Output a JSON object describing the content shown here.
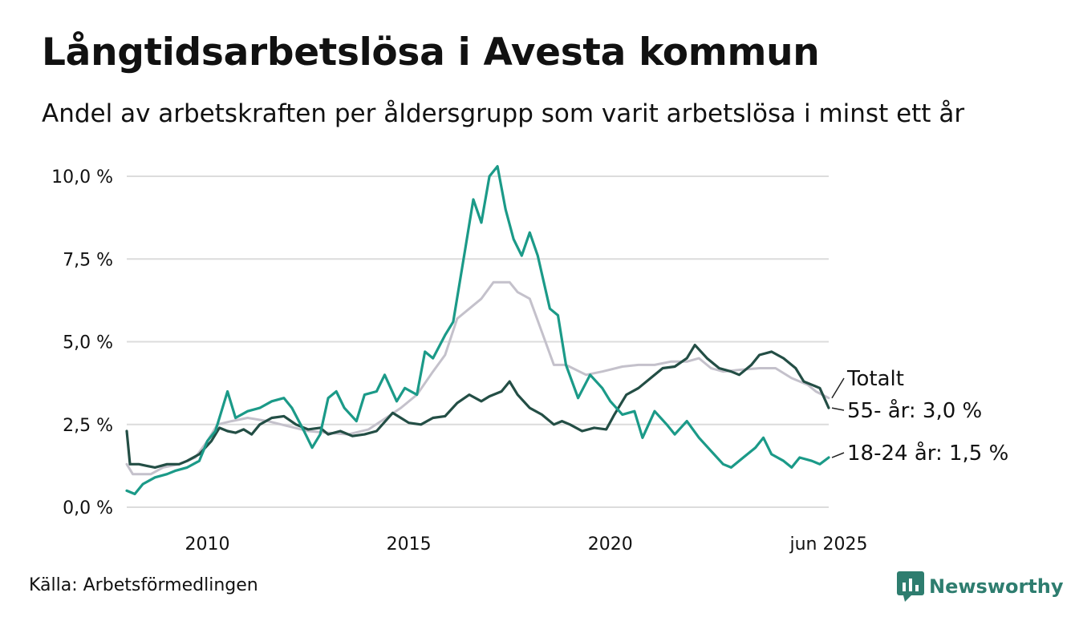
{
  "title": "Långtidsarbetslösa i Avesta kommun",
  "subtitle": "Andel av arbetskraften per åldersgrupp som varit arbetslösa i minst ett år",
  "source": "Källa: Arbetsförmedlingen",
  "brand": "Newsworthy",
  "colors": {
    "Totalt": "#c4c1cb",
    "55- år": "#234e45",
    "18-24 år": "#1b9a88",
    "grid": "#dcdcdc",
    "brand": "#2e7d6f"
  },
  "chart_data": {
    "type": "line",
    "title": "Långtidsarbetslösa i Avesta kommun",
    "xlabel": "",
    "ylabel": "",
    "xlim": [
      2008.0,
      2025.42
    ],
    "ylim": [
      0,
      10
    ],
    "yticks": [
      0,
      2.5,
      5,
      7.5,
      10
    ],
    "ytick_labels": [
      "0,0 %",
      "2,5 %",
      "5,0 %",
      "7,5 %",
      "10,0 %"
    ],
    "xticks": [
      2010,
      2015,
      2020,
      2025.42
    ],
    "xtick_labels": [
      "2010",
      "2015",
      "2020",
      "jun 2025"
    ],
    "grid": true,
    "legend": "end-of-line labels",
    "series": [
      {
        "name": "Totalt",
        "end_label": "Totalt",
        "points": [
          [
            2008.0,
            1.3
          ],
          [
            2008.15,
            1.0
          ],
          [
            2008.6,
            1.0
          ],
          [
            2008.9,
            1.2
          ],
          [
            2009.3,
            1.3
          ],
          [
            2009.7,
            1.5
          ],
          [
            2010.0,
            2.0
          ],
          [
            2010.25,
            2.5
          ],
          [
            2010.6,
            2.6
          ],
          [
            2011.0,
            2.7
          ],
          [
            2011.5,
            2.6
          ],
          [
            2012.0,
            2.45
          ],
          [
            2012.5,
            2.3
          ],
          [
            2013.0,
            2.25
          ],
          [
            2013.5,
            2.2
          ],
          [
            2014.0,
            2.35
          ],
          [
            2014.5,
            2.75
          ],
          [
            2014.8,
            3.0
          ],
          [
            2015.2,
            3.4
          ],
          [
            2015.6,
            4.1
          ],
          [
            2015.9,
            4.6
          ],
          [
            2016.2,
            5.7
          ],
          [
            2016.5,
            6.0
          ],
          [
            2016.8,
            6.3
          ],
          [
            2017.1,
            6.8
          ],
          [
            2017.5,
            6.8
          ],
          [
            2017.7,
            6.5
          ],
          [
            2018.0,
            6.3
          ],
          [
            2018.3,
            5.3
          ],
          [
            2018.6,
            4.3
          ],
          [
            2018.9,
            4.3
          ],
          [
            2019.4,
            4.0
          ],
          [
            2019.8,
            4.1
          ],
          [
            2020.3,
            4.25
          ],
          [
            2020.7,
            4.3
          ],
          [
            2021.1,
            4.3
          ],
          [
            2021.5,
            4.4
          ],
          [
            2021.9,
            4.4
          ],
          [
            2022.2,
            4.5
          ],
          [
            2022.5,
            4.2
          ],
          [
            2022.8,
            4.1
          ],
          [
            2023.2,
            4.15
          ],
          [
            2023.7,
            4.2
          ],
          [
            2024.1,
            4.2
          ],
          [
            2024.5,
            3.9
          ],
          [
            2024.9,
            3.7
          ],
          [
            2025.1,
            3.5
          ],
          [
            2025.42,
            3.3
          ]
        ]
      },
      {
        "name": "55- år",
        "end_label": "55- år: 3,0 %",
        "last_value": 3.0,
        "points": [
          [
            2008.0,
            2.3
          ],
          [
            2008.08,
            1.3
          ],
          [
            2008.3,
            1.3
          ],
          [
            2008.5,
            1.25
          ],
          [
            2008.7,
            1.2
          ],
          [
            2009.0,
            1.3
          ],
          [
            2009.3,
            1.3
          ],
          [
            2009.5,
            1.4
          ],
          [
            2009.8,
            1.6
          ],
          [
            2010.1,
            2.0
          ],
          [
            2010.3,
            2.4
          ],
          [
            2010.5,
            2.3
          ],
          [
            2010.7,
            2.25
          ],
          [
            2010.9,
            2.35
          ],
          [
            2011.1,
            2.2
          ],
          [
            2011.3,
            2.5
          ],
          [
            2011.6,
            2.7
          ],
          [
            2011.9,
            2.75
          ],
          [
            2012.2,
            2.5
          ],
          [
            2012.5,
            2.35
          ],
          [
            2012.8,
            2.4
          ],
          [
            2013.0,
            2.2
          ],
          [
            2013.3,
            2.3
          ],
          [
            2013.6,
            2.15
          ],
          [
            2013.9,
            2.2
          ],
          [
            2014.2,
            2.3
          ],
          [
            2014.6,
            2.85
          ],
          [
            2014.8,
            2.7
          ],
          [
            2015.0,
            2.55
          ],
          [
            2015.3,
            2.5
          ],
          [
            2015.6,
            2.7
          ],
          [
            2015.9,
            2.75
          ],
          [
            2016.2,
            3.15
          ],
          [
            2016.5,
            3.4
          ],
          [
            2016.8,
            3.2
          ],
          [
            2017.0,
            3.35
          ],
          [
            2017.3,
            3.5
          ],
          [
            2017.5,
            3.8
          ],
          [
            2017.7,
            3.4
          ],
          [
            2018.0,
            3.0
          ],
          [
            2018.3,
            2.8
          ],
          [
            2018.6,
            2.5
          ],
          [
            2018.8,
            2.6
          ],
          [
            2019.0,
            2.5
          ],
          [
            2019.3,
            2.3
          ],
          [
            2019.6,
            2.4
          ],
          [
            2019.9,
            2.35
          ],
          [
            2020.1,
            2.8
          ],
          [
            2020.4,
            3.4
          ],
          [
            2020.7,
            3.6
          ],
          [
            2021.0,
            3.9
          ],
          [
            2021.3,
            4.2
          ],
          [
            2021.6,
            4.25
          ],
          [
            2021.9,
            4.5
          ],
          [
            2022.1,
            4.9
          ],
          [
            2022.4,
            4.5
          ],
          [
            2022.7,
            4.2
          ],
          [
            2023.0,
            4.1
          ],
          [
            2023.2,
            4.0
          ],
          [
            2023.5,
            4.3
          ],
          [
            2023.7,
            4.6
          ],
          [
            2024.0,
            4.7
          ],
          [
            2024.3,
            4.5
          ],
          [
            2024.6,
            4.2
          ],
          [
            2024.8,
            3.8
          ],
          [
            2025.0,
            3.7
          ],
          [
            2025.2,
            3.6
          ],
          [
            2025.42,
            3.0
          ]
        ]
      },
      {
        "name": "18-24 år",
        "end_label": "18-24 år: 1,5 %",
        "last_value": 1.5,
        "points": [
          [
            2008.0,
            0.5
          ],
          [
            2008.2,
            0.4
          ],
          [
            2008.4,
            0.7
          ],
          [
            2008.7,
            0.9
          ],
          [
            2009.0,
            1.0
          ],
          [
            2009.2,
            1.1
          ],
          [
            2009.5,
            1.2
          ],
          [
            2009.8,
            1.4
          ],
          [
            2010.0,
            2.0
          ],
          [
            2010.2,
            2.3
          ],
          [
            2010.5,
            3.5
          ],
          [
            2010.7,
            2.7
          ],
          [
            2011.0,
            2.9
          ],
          [
            2011.3,
            3.0
          ],
          [
            2011.6,
            3.2
          ],
          [
            2011.9,
            3.3
          ],
          [
            2012.1,
            3.0
          ],
          [
            2012.4,
            2.3
          ],
          [
            2012.6,
            1.8
          ],
          [
            2012.8,
            2.2
          ],
          [
            2013.0,
            3.3
          ],
          [
            2013.2,
            3.5
          ],
          [
            2013.4,
            3.0
          ],
          [
            2013.7,
            2.6
          ],
          [
            2013.9,
            3.4
          ],
          [
            2014.2,
            3.5
          ],
          [
            2014.4,
            4.0
          ],
          [
            2014.7,
            3.2
          ],
          [
            2014.9,
            3.6
          ],
          [
            2015.2,
            3.4
          ],
          [
            2015.4,
            4.7
          ],
          [
            2015.6,
            4.5
          ],
          [
            2015.9,
            5.2
          ],
          [
            2016.1,
            5.6
          ],
          [
            2016.4,
            7.8
          ],
          [
            2016.6,
            9.3
          ],
          [
            2016.8,
            8.6
          ],
          [
            2017.0,
            10.0
          ],
          [
            2017.2,
            10.3
          ],
          [
            2017.4,
            9.0
          ],
          [
            2017.6,
            8.1
          ],
          [
            2017.8,
            7.6
          ],
          [
            2018.0,
            8.3
          ],
          [
            2018.2,
            7.6
          ],
          [
            2018.5,
            6.0
          ],
          [
            2018.7,
            5.8
          ],
          [
            2018.9,
            4.3
          ],
          [
            2019.2,
            3.3
          ],
          [
            2019.5,
            4.0
          ],
          [
            2019.8,
            3.6
          ],
          [
            2020.0,
            3.2
          ],
          [
            2020.3,
            2.8
          ],
          [
            2020.6,
            2.9
          ],
          [
            2020.8,
            2.1
          ],
          [
            2021.1,
            2.9
          ],
          [
            2021.4,
            2.5
          ],
          [
            2021.6,
            2.2
          ],
          [
            2021.9,
            2.6
          ],
          [
            2022.2,
            2.1
          ],
          [
            2022.5,
            1.7
          ],
          [
            2022.8,
            1.3
          ],
          [
            2023.0,
            1.2
          ],
          [
            2023.3,
            1.5
          ],
          [
            2023.6,
            1.8
          ],
          [
            2023.8,
            2.1
          ],
          [
            2024.0,
            1.6
          ],
          [
            2024.3,
            1.4
          ],
          [
            2024.5,
            1.2
          ],
          [
            2024.7,
            1.5
          ],
          [
            2025.0,
            1.4
          ],
          [
            2025.2,
            1.3
          ],
          [
            2025.42,
            1.5
          ]
        ]
      }
    ]
  }
}
